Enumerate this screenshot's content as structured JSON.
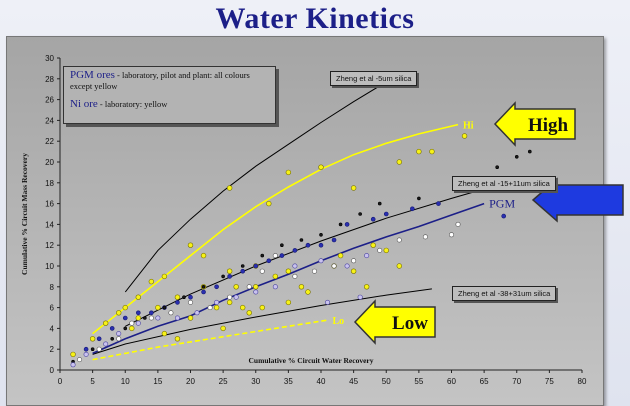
{
  "slide": {
    "title": "Water Kinetics"
  },
  "chart_data": {
    "type": "scatter",
    "xlabel": "Cumulative % Circuit Water Recovery",
    "ylabel": "Cumulative % Circuit Mass Recovery",
    "xlim": [
      0,
      80
    ],
    "ylim": [
      0,
      30
    ],
    "x_ticks": [
      "0",
      "5",
      "10",
      "15",
      "20",
      "25",
      "30",
      "35",
      "40",
      "45",
      "50",
      "55",
      "60",
      "65",
      "70",
      "75",
      "80"
    ],
    "y_ticks": [
      "0",
      "2",
      "4",
      "6",
      "8",
      "10",
      "12",
      "14",
      "16",
      "18",
      "20",
      "22",
      "24",
      "26",
      "28",
      "30"
    ],
    "grid": false,
    "legend": {
      "entries": [
        {
          "head": "PGM ores",
          "text": " - laboratory, pilot and plant: all colours except yellow"
        },
        {
          "head": "Ni ore",
          "text": " - laboratory: yellow"
        }
      ]
    },
    "series": [
      {
        "label": "",
        "color": "#000000",
        "style": "solid",
        "x": [
          10,
          15,
          20,
          25,
          30,
          35,
          40,
          45,
          50
        ],
        "y": [
          7.5,
          11.5,
          14.5,
          17.2,
          19.6,
          21.7,
          23.8,
          25.8,
          27.7
        ]
      },
      {
        "label": "",
        "color": "#000000",
        "style": "solid",
        "x": [
          10,
          20,
          30,
          40,
          50,
          60,
          65
        ],
        "y": [
          4.2,
          7.3,
          10.0,
          12.4,
          14.6,
          16.5,
          17.4
        ]
      },
      {
        "label": "",
        "color": "#000000",
        "style": "solid",
        "x": [
          5,
          10,
          20,
          30,
          40,
          50,
          57
        ],
        "y": [
          1.5,
          2.5,
          3.9,
          5.1,
          6.2,
          7.2,
          7.8
        ]
      },
      {
        "label": "Hi",
        "color": "#ffff00",
        "style": "solid",
        "x": [
          5,
          10,
          15,
          20,
          25,
          30,
          35,
          40,
          45,
          50,
          55,
          61
        ],
        "y": [
          3.5,
          6.0,
          8.5,
          11.0,
          13.5,
          15.7,
          17.6,
          19.3,
          20.7,
          21.8,
          22.7,
          23.6
        ]
      },
      {
        "label": "PGM",
        "color": "#1c1f88",
        "style": "solid",
        "x": [
          5,
          10,
          15,
          20,
          25,
          30,
          35,
          40,
          45,
          50,
          55,
          60,
          65
        ],
        "y": [
          1.6,
          3.0,
          4.2,
          5.2,
          6.7,
          8.0,
          9.2,
          10.5,
          11.7,
          12.8,
          13.8,
          14.9,
          16.0
        ]
      },
      {
        "label": "Lo",
        "color": "#ffff00",
        "style": "dashed",
        "x": [
          5,
          10,
          15,
          20,
          25,
          30,
          35,
          41
        ],
        "y": [
          1.0,
          1.6,
          2.2,
          2.7,
          3.2,
          3.7,
          4.2,
          4.8
        ]
      }
    ],
    "points": {
      "yellow": [
        [
          2,
          1.5
        ],
        [
          5,
          3
        ],
        [
          7,
          4.5
        ],
        [
          9,
          5.5
        ],
        [
          10,
          6
        ],
        [
          11,
          4
        ],
        [
          12,
          5
        ],
        [
          12,
          7
        ],
        [
          14,
          8.5
        ],
        [
          15,
          6
        ],
        [
          16,
          9
        ],
        [
          18,
          7
        ],
        [
          20,
          12
        ],
        [
          22,
          11
        ],
        [
          22,
          8
        ],
        [
          24,
          6
        ],
        [
          26,
          17.5
        ],
        [
          26,
          9.5
        ],
        [
          27,
          8
        ],
        [
          28,
          6
        ],
        [
          30,
          10
        ],
        [
          30,
          8
        ],
        [
          32,
          16
        ],
        [
          33,
          9
        ],
        [
          35,
          19
        ],
        [
          35,
          9.5
        ],
        [
          37,
          8
        ],
        [
          40,
          19.5
        ],
        [
          42,
          10
        ],
        [
          45,
          17.5
        ],
        [
          45,
          9.5
        ],
        [
          47,
          8
        ],
        [
          50,
          11.5
        ],
        [
          52,
          10
        ],
        [
          52,
          20
        ],
        [
          57,
          21
        ],
        [
          62,
          22.5
        ],
        [
          20,
          5
        ],
        [
          18,
          3
        ],
        [
          25,
          4
        ],
        [
          31,
          6
        ],
        [
          35,
          6.5
        ],
        [
          38,
          7.5
        ],
        [
          43,
          11
        ],
        [
          48,
          12
        ],
        [
          55,
          21
        ],
        [
          16,
          3.5
        ],
        [
          26,
          6.5
        ],
        [
          29,
          5.5
        ]
      ],
      "blue": [
        [
          4,
          2
        ],
        [
          6,
          3
        ],
        [
          8,
          4
        ],
        [
          10,
          5
        ],
        [
          12,
          5.5
        ],
        [
          14,
          5.5
        ],
        [
          16,
          6
        ],
        [
          18,
          6.5
        ],
        [
          20,
          7
        ],
        [
          22,
          7.5
        ],
        [
          24,
          8
        ],
        [
          26,
          9
        ],
        [
          28,
          9.5
        ],
        [
          30,
          10
        ],
        [
          32,
          10.5
        ],
        [
          34,
          11
        ],
        [
          36,
          11.5
        ],
        [
          38,
          12
        ],
        [
          40,
          12
        ],
        [
          42,
          12.5
        ],
        [
          44,
          14
        ],
        [
          48,
          14.5
        ],
        [
          50,
          15
        ],
        [
          54,
          15.5
        ],
        [
          58,
          16
        ],
        [
          68,
          14.8
        ]
      ],
      "black": [
        [
          2,
          0.8
        ],
        [
          5,
          2
        ],
        [
          8,
          3
        ],
        [
          10,
          4
        ],
        [
          13,
          5
        ],
        [
          16,
          6
        ],
        [
          19,
          7
        ],
        [
          22,
          8
        ],
        [
          25,
          9
        ],
        [
          28,
          10
        ],
        [
          31,
          11
        ],
        [
          34,
          12
        ],
        [
          37,
          12.5
        ],
        [
          40,
          13
        ],
        [
          43,
          14
        ],
        [
          46,
          15
        ],
        [
          49,
          16
        ],
        [
          55,
          16.5
        ],
        [
          62,
          18
        ],
        [
          67,
          19.5
        ],
        [
          70,
          20.5
        ],
        [
          72,
          21
        ]
      ],
      "white": [
        [
          3,
          1
        ],
        [
          6,
          2
        ],
        [
          9,
          3
        ],
        [
          11,
          4.5
        ],
        [
          14,
          5
        ],
        [
          17,
          5.5
        ],
        [
          20,
          6.5
        ],
        [
          23,
          6
        ],
        [
          26,
          7
        ],
        [
          29,
          8
        ],
        [
          31,
          9.5
        ],
        [
          33,
          11
        ],
        [
          36,
          9
        ],
        [
          39,
          9.5
        ],
        [
          42,
          10
        ],
        [
          45,
          10.5
        ],
        [
          49,
          11.5
        ],
        [
          52,
          12.5
        ],
        [
          56,
          12.8
        ],
        [
          61,
          14
        ],
        [
          60,
          13
        ]
      ],
      "lavender": [
        [
          2,
          0.5
        ],
        [
          4,
          1.5
        ],
        [
          7,
          2.5
        ],
        [
          9,
          3.5
        ],
        [
          12,
          4.5
        ],
        [
          15,
          5
        ],
        [
          18,
          5
        ],
        [
          21,
          5.5
        ],
        [
          24,
          6.5
        ],
        [
          27,
          7
        ],
        [
          30,
          7.5
        ],
        [
          33,
          8
        ],
        [
          36,
          10
        ],
        [
          40,
          10.5
        ],
        [
          44,
          10
        ],
        [
          47,
          11
        ],
        [
          41,
          6.5
        ],
        [
          46,
          7
        ]
      ]
    },
    "annotations": [
      {
        "text": "Zheng et al -5um silica"
      },
      {
        "text": "Zheng et al -15+11um silica"
      },
      {
        "text": "Zheng et al -38+31um silica"
      },
      {
        "text": "Hi"
      },
      {
        "text": "PGM"
      },
      {
        "text": "Lo"
      }
    ],
    "callouts": [
      {
        "text": "High",
        "color": "#ffff00"
      },
      {
        "text": "Low",
        "color": "#ffff00"
      },
      {
        "text": "",
        "color": "#1e3ae0"
      }
    ]
  }
}
